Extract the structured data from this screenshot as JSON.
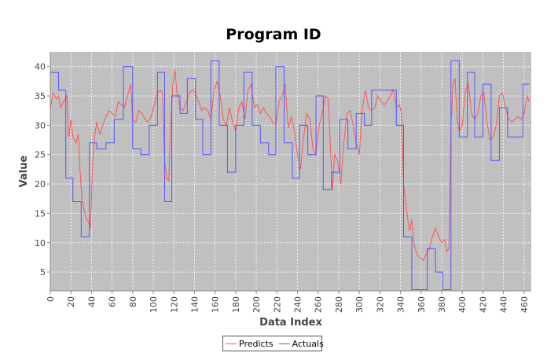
{
  "chart_data": {
    "type": "line",
    "title": "Program ID",
    "xlabel": "Data Index",
    "ylabel": "Value",
    "xlim": [
      0,
      467
    ],
    "ylim": [
      1.8,
      42.5
    ],
    "xticks": [
      0,
      20,
      40,
      60,
      80,
      100,
      120,
      140,
      160,
      180,
      200,
      220,
      240,
      260,
      280,
      300,
      320,
      340,
      360,
      380,
      400,
      420,
      440,
      460
    ],
    "yticks": [
      5,
      10,
      15,
      20,
      25,
      30,
      35,
      40
    ],
    "grid": true,
    "legend_position": "bottom",
    "colors": {
      "plot_background": "#c0c0c0",
      "grid": "#ffffff",
      "predicts": "#ff5555",
      "actuals": "#5555ff"
    },
    "series": [
      {
        "name": "Predicts",
        "points": [
          [
            0,
            33
          ],
          [
            3,
            35.5
          ],
          [
            6,
            34.5
          ],
          [
            8,
            35
          ],
          [
            10,
            33
          ],
          [
            13,
            34
          ],
          [
            16,
            35
          ],
          [
            18,
            28
          ],
          [
            20,
            31
          ],
          [
            22,
            28
          ],
          [
            25,
            27
          ],
          [
            27,
            28.5
          ],
          [
            29,
            22
          ],
          [
            31,
            17
          ],
          [
            33,
            15.5
          ],
          [
            35,
            14
          ],
          [
            37,
            13.5
          ],
          [
            39,
            12.5
          ],
          [
            41,
            23
          ],
          [
            43,
            28
          ],
          [
            45,
            30.5
          ],
          [
            48,
            28.5
          ],
          [
            51,
            30
          ],
          [
            54,
            31.5
          ],
          [
            57,
            32.5
          ],
          [
            60,
            32
          ],
          [
            63,
            31.5
          ],
          [
            66,
            34
          ],
          [
            69,
            33.5
          ],
          [
            72,
            33
          ],
          [
            75,
            35
          ],
          [
            78,
            37
          ],
          [
            80,
            31
          ],
          [
            83,
            30.5
          ],
          [
            86,
            32.5
          ],
          [
            89,
            32
          ],
          [
            92,
            31
          ],
          [
            95,
            30.5
          ],
          [
            98,
            31.5
          ],
          [
            101,
            33.5
          ],
          [
            104,
            35.5
          ],
          [
            107,
            36
          ],
          [
            109,
            35.5
          ],
          [
            111,
            24
          ],
          [
            113,
            21
          ],
          [
            115,
            20.5
          ],
          [
            117,
            30
          ],
          [
            119,
            37
          ],
          [
            121,
            39.5
          ],
          [
            123,
            35.5
          ],
          [
            126,
            33
          ],
          [
            129,
            32.5
          ],
          [
            132,
            34
          ],
          [
            135,
            35.5
          ],
          [
            138,
            36
          ],
          [
            141,
            35.5
          ],
          [
            144,
            34
          ],
          [
            147,
            32.5
          ],
          [
            150,
            33
          ],
          [
            153,
            32.5
          ],
          [
            156,
            31
          ],
          [
            159,
            36
          ],
          [
            162,
            37.5
          ],
          [
            165,
            35
          ],
          [
            168,
            31
          ],
          [
            171,
            30
          ],
          [
            174,
            33
          ],
          [
            177,
            30.5
          ],
          [
            180,
            29
          ],
          [
            183,
            33
          ],
          [
            186,
            34
          ],
          [
            189,
            31
          ],
          [
            192,
            36
          ],
          [
            195,
            37
          ],
          [
            198,
            33
          ],
          [
            201,
            33.5
          ],
          [
            204,
            32
          ],
          [
            207,
            33
          ],
          [
            210,
            32
          ],
          [
            213,
            31.5
          ],
          [
            216,
            30.5
          ],
          [
            219,
            30
          ],
          [
            222,
            34
          ],
          [
            225,
            35
          ],
          [
            228,
            37
          ],
          [
            231,
            29.5
          ],
          [
            234,
            31.5
          ],
          [
            237,
            29
          ],
          [
            240,
            25
          ],
          [
            243,
            22.5
          ],
          [
            246,
            28
          ],
          [
            249,
            32
          ],
          [
            252,
            31
          ],
          [
            255,
            26
          ],
          [
            258,
            25
          ],
          [
            261,
            30
          ],
          [
            264,
            32
          ],
          [
            267,
            35
          ],
          [
            270,
            34.5
          ],
          [
            272,
            26
          ],
          [
            274,
            19
          ],
          [
            276,
            25
          ],
          [
            279,
            24
          ],
          [
            282,
            20
          ],
          [
            285,
            27
          ],
          [
            288,
            32
          ],
          [
            291,
            32.5
          ],
          [
            294,
            30
          ],
          [
            297,
            27
          ],
          [
            300,
            25
          ],
          [
            303,
            33
          ],
          [
            306,
            36
          ],
          [
            309,
            33
          ],
          [
            312,
            32.5
          ],
          [
            315,
            33
          ],
          [
            318,
            35
          ],
          [
            321,
            34
          ],
          [
            324,
            33.5
          ],
          [
            327,
            34
          ],
          [
            330,
            35
          ],
          [
            333,
            36
          ],
          [
            336,
            33
          ],
          [
            339,
            33.5
          ],
          [
            341,
            32
          ],
          [
            343,
            20
          ],
          [
            345,
            17
          ],
          [
            347,
            14
          ],
          [
            349,
            12
          ],
          [
            351,
            14
          ],
          [
            353,
            10
          ],
          [
            356,
            8
          ],
          [
            359,
            7.5
          ],
          [
            362,
            7
          ],
          [
            365,
            8
          ],
          [
            368,
            9
          ],
          [
            371,
            11
          ],
          [
            374,
            12.5
          ],
          [
            377,
            11
          ],
          [
            380,
            10
          ],
          [
            383,
            10.5
          ],
          [
            385,
            8.5
          ],
          [
            387,
            9
          ],
          [
            389,
            30
          ],
          [
            391,
            37
          ],
          [
            393,
            38
          ],
          [
            395,
            31
          ],
          [
            397,
            29
          ],
          [
            400,
            30
          ],
          [
            403,
            36
          ],
          [
            406,
            37
          ],
          [
            409,
            32
          ],
          [
            412,
            31
          ],
          [
            415,
            32
          ],
          [
            418,
            35
          ],
          [
            421,
            35.5
          ],
          [
            424,
            30.5
          ],
          [
            427,
            27.5
          ],
          [
            430,
            28
          ],
          [
            433,
            30
          ],
          [
            436,
            35
          ],
          [
            439,
            35.5
          ],
          [
            442,
            33
          ],
          [
            445,
            31
          ],
          [
            448,
            30.5
          ],
          [
            451,
            31
          ],
          [
            454,
            31.5
          ],
          [
            457,
            31
          ],
          [
            460,
            32
          ],
          [
            463,
            35
          ],
          [
            465,
            34
          ]
        ]
      },
      {
        "name": "Actuals",
        "points": [
          [
            0,
            39
          ],
          [
            8,
            39
          ],
          [
            8,
            36
          ],
          [
            15,
            36
          ],
          [
            15,
            21
          ],
          [
            22,
            21
          ],
          [
            22,
            17
          ],
          [
            30,
            17
          ],
          [
            30,
            11
          ],
          [
            38,
            11
          ],
          [
            38,
            27
          ],
          [
            45,
            27
          ],
          [
            45,
            26
          ],
          [
            54,
            26
          ],
          [
            54,
            27
          ],
          [
            62,
            27
          ],
          [
            62,
            31
          ],
          [
            71,
            31
          ],
          [
            71,
            40
          ],
          [
            80,
            40
          ],
          [
            80,
            26
          ],
          [
            88,
            26
          ],
          [
            88,
            25
          ],
          [
            96,
            25
          ],
          [
            96,
            30
          ],
          [
            104,
            30
          ],
          [
            104,
            39
          ],
          [
            111,
            39
          ],
          [
            111,
            17
          ],
          [
            118,
            17
          ],
          [
            118,
            35
          ],
          [
            126,
            35
          ],
          [
            126,
            32
          ],
          [
            133,
            32
          ],
          [
            133,
            38
          ],
          [
            141,
            38
          ],
          [
            141,
            31
          ],
          [
            148,
            31
          ],
          [
            148,
            25
          ],
          [
            156,
            25
          ],
          [
            156,
            41
          ],
          [
            164,
            41
          ],
          [
            164,
            30
          ],
          [
            172,
            30
          ],
          [
            172,
            22
          ],
          [
            180,
            22
          ],
          [
            180,
            30
          ],
          [
            188,
            30
          ],
          [
            188,
            39
          ],
          [
            196,
            39
          ],
          [
            196,
            30
          ],
          [
            204,
            30
          ],
          [
            204,
            27
          ],
          [
            212,
            27
          ],
          [
            212,
            25
          ],
          [
            219,
            25
          ],
          [
            219,
            40
          ],
          [
            227,
            40
          ],
          [
            227,
            27
          ],
          [
            235,
            27
          ],
          [
            235,
            21
          ],
          [
            242,
            21
          ],
          [
            242,
            30
          ],
          [
            250,
            30
          ],
          [
            250,
            25
          ],
          [
            258,
            25
          ],
          [
            258,
            35
          ],
          [
            265,
            35
          ],
          [
            265,
            19
          ],
          [
            273,
            19
          ],
          [
            273,
            22
          ],
          [
            281,
            22
          ],
          [
            281,
            31
          ],
          [
            289,
            31
          ],
          [
            289,
            26
          ],
          [
            297,
            26
          ],
          [
            297,
            32
          ],
          [
            305,
            32
          ],
          [
            305,
            30
          ],
          [
            312,
            30
          ],
          [
            312,
            36
          ],
          [
            320,
            36
          ],
          [
            320,
            36
          ],
          [
            336,
            36
          ],
          [
            336,
            30
          ],
          [
            343,
            30
          ],
          [
            343,
            11
          ],
          [
            351,
            11
          ],
          [
            351,
            2
          ],
          [
            366,
            2
          ],
          [
            366,
            9
          ],
          [
            374,
            9
          ],
          [
            374,
            5
          ],
          [
            381,
            5
          ],
          [
            381,
            2
          ],
          [
            389,
            2
          ],
          [
            389,
            41
          ],
          [
            397,
            41
          ],
          [
            397,
            28
          ],
          [
            405,
            28
          ],
          [
            405,
            39
          ],
          [
            412,
            39
          ],
          [
            412,
            28
          ],
          [
            420,
            28
          ],
          [
            420,
            37
          ],
          [
            428,
            37
          ],
          [
            428,
            24
          ],
          [
            436,
            24
          ],
          [
            436,
            33
          ],
          [
            444,
            33
          ],
          [
            444,
            28
          ],
          [
            459,
            28
          ],
          [
            459,
            37
          ],
          [
            465,
            37
          ]
        ]
      }
    ]
  }
}
